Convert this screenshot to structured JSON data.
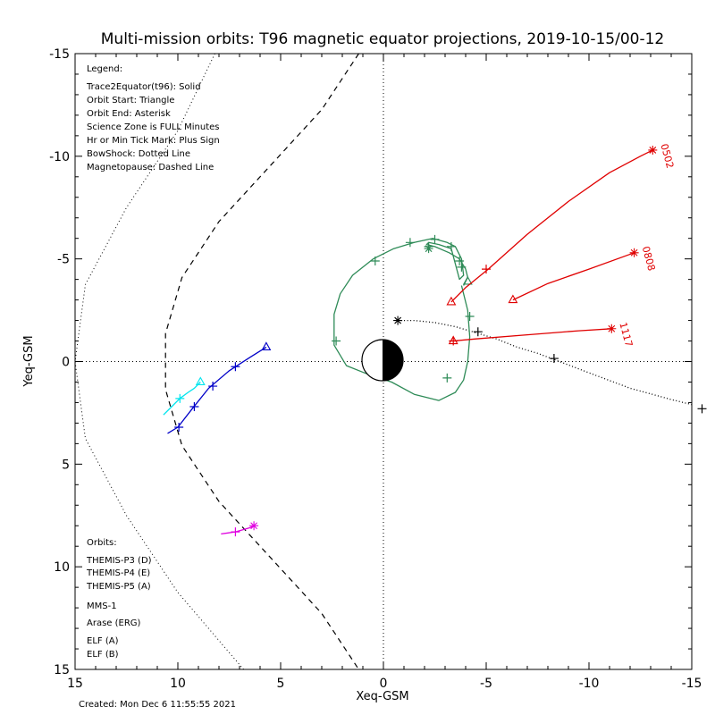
{
  "chart_data": {
    "type": "line",
    "title": "Multi-mission orbits: T96 magnetic equator projections, 2019-10-15/00-12",
    "xlabel": "Xeq-GSM",
    "ylabel": "Yeq-GSM",
    "xlim": [
      15,
      -15
    ],
    "ylim": [
      15,
      -15
    ],
    "x_ticks": [
      "15",
      "10",
      "5",
      "0",
      "-5",
      "-10",
      "-15"
    ],
    "y_ticks": [
      "-15",
      "-10",
      "-5",
      "0",
      "5",
      "10",
      "15"
    ],
    "created": "Created: Mon Dec  6 11:55:55 2021",
    "legend_lines": [
      "Legend:",
      "Trace2Equator(t96): Solid",
      "Orbit Start: Triangle",
      "Orbit End: Asterisk",
      "Science Zone is FULL Minutes",
      "Hr or Min Tick Mark: Plus Sign",
      "BowShock: Dotted Line",
      "Magnetopause: Dashed Line"
    ],
    "orbits_header": "Orbits:",
    "orbits": [
      {
        "name": "THEMIS-P3 (D)",
        "color": "#00e5ee"
      },
      {
        "name": "THEMIS-P4 (E)",
        "color": "#0000c8"
      },
      {
        "name": "THEMIS-P5 (A)",
        "color": "#e000e0"
      },
      {
        "name": "MMS-1",
        "color": "#000000"
      },
      {
        "name": "Arase (ERG)",
        "color": "#2e8b57"
      },
      {
        "name": "ELF (A)",
        "color": "#1e90ff"
      },
      {
        "name": "ELF (B)",
        "color": "#e00000"
      }
    ],
    "bow_shock": {
      "style": "dotted",
      "x": [
        8.2,
        10,
        12.5,
        14.5,
        15,
        14.5,
        12.5,
        10,
        6.8
      ]
    },
    "magnetopause": {
      "style": "dashed",
      "x": [
        1.2,
        3,
        5.5,
        8,
        9.8,
        10.6,
        10.6,
        9.8,
        8,
        5.5,
        3,
        1.2
      ]
    },
    "series": [
      {
        "name": "THEMIS-P3 (D)",
        "color": "#00e5ee",
        "x": [
          10.7,
          10.3,
          9.9,
          9.5,
          9.2,
          8.9
        ],
        "y": [
          2.6,
          2.2,
          1.8,
          1.5,
          1.3,
          1.0
        ],
        "ticks": [
          [
            9.9,
            1.8
          ]
        ],
        "start": [
          8.9,
          1.0
        ],
        "end": null
      },
      {
        "name": "THEMIS-P4 (E)",
        "color": "#0000c8",
        "x": [
          10.5,
          10.0,
          9.3,
          8.5,
          7.5,
          6.5,
          5.7
        ],
        "y": [
          3.5,
          3.2,
          2.3,
          1.3,
          0.45,
          -0.2,
          -0.7
        ],
        "ticks": [
          [
            9.95,
            3.2
          ],
          [
            9.2,
            2.2
          ],
          [
            8.3,
            1.2
          ],
          [
            7.2,
            0.25
          ]
        ],
        "start": [
          5.7,
          -0.7
        ],
        "end": null
      },
      {
        "name": "THEMIS-P5 (A)",
        "color": "#e000e0",
        "x": [
          7.9,
          7.2,
          6.5,
          6.3
        ],
        "y": [
          8.4,
          8.3,
          8.1,
          8.0
        ],
        "ticks": [
          [
            7.2,
            8.3
          ]
        ],
        "start": null,
        "end": [
          6.3,
          8.0
        ]
      },
      {
        "name": "MMS-1",
        "color": "#000000",
        "x": [
          -0.7,
          -1.5,
          -2.5,
          -3.5,
          -4.5,
          -5.5,
          -6.5,
          -7.5,
          -8.3,
          -10,
          -12,
          -14,
          -15
        ],
        "y": [
          -2.0,
          -2.0,
          -1.9,
          -1.7,
          -1.4,
          -1.1,
          -0.7,
          -0.4,
          -0.1,
          0.55,
          1.3,
          1.85,
          2.1
        ],
        "ticks": [
          [
            -4.6,
            -1.45
          ],
          [
            -8.3,
            -0.15
          ],
          [
            -15.5,
            2.3
          ]
        ],
        "start": null,
        "end": [
          -0.7,
          -2.0
        ]
      },
      {
        "name": "Arase (ERG)",
        "color": "#2e8b57",
        "x": [
          -3.8,
          -4.1,
          -4.2,
          -4.1,
          -3.9,
          -3.5,
          -2.7,
          -1.5,
          -0.4,
          0.8,
          1.8,
          2.4,
          2.4,
          2.1,
          1.5,
          0.5,
          -0.5,
          -1.5,
          -2.4,
          -3.1,
          -3.5,
          -3.8,
          -3.9,
          -3.7,
          -3.3,
          -2.7,
          -2.2,
          -2.1,
          -2.5,
          -3.2,
          -3.7,
          -4.0,
          -4.1,
          -3.9
        ],
        "y": [
          -3.7,
          -2.5,
          -1.2,
          0.0,
          0.9,
          1.5,
          1.9,
          1.6,
          1.0,
          0.6,
          0.2,
          -0.8,
          -2.3,
          -3.3,
          -4.2,
          -5.0,
          -5.5,
          -5.8,
          -6.0,
          -5.8,
          -5.6,
          -5.0,
          -4.2,
          -4.0,
          -5.5,
          -5.7,
          -5.8,
          -5.7,
          -5.6,
          -5.3,
          -5.0,
          -4.5,
          -4.1,
          -3.7
        ],
        "ticks": [
          [
            -3.1,
            0.8
          ],
          [
            2.3,
            -1.0
          ],
          [
            0.4,
            -4.9
          ],
          [
            -1.3,
            -5.8
          ],
          [
            -2.5,
            -5.95
          ],
          [
            -3.3,
            -5.6
          ],
          [
            -3.7,
            -4.9
          ],
          [
            -3.8,
            -4.6
          ],
          [
            -4.2,
            -2.2
          ],
          [
            -2.2,
            -5.6
          ]
        ],
        "start": [
          -4.1,
          -3.9
        ],
        "end": [
          -2.2,
          -5.5
        ]
      },
      {
        "name": "ELF (B)",
        "color": "#e00000",
        "label": "0502",
        "x": [
          -3.3,
          -4.0,
          -5.1,
          -7,
          -9,
          -11,
          -12.5,
          -13.1
        ],
        "y": [
          -2.9,
          -3.6,
          -4.5,
          -6.2,
          -7.8,
          -9.2,
          -10.0,
          -10.3
        ],
        "ticks": [
          [
            -5.0,
            -4.5
          ]
        ],
        "start": [
          -3.3,
          -2.9
        ],
        "end": [
          -13.1,
          -10.3
        ]
      },
      {
        "name": "ELF (B)",
        "color": "#e00000",
        "label": "0808",
        "x": [
          -6.3,
          -8,
          -10,
          -12.2
        ],
        "y": [
          -3.0,
          -3.8,
          -4.5,
          -5.3
        ],
        "ticks": [],
        "start": [
          -6.3,
          -3.0
        ],
        "end": [
          -12.2,
          -5.3
        ]
      },
      {
        "name": "ELF (B)",
        "color": "#e00000",
        "label": "1117",
        "x": [
          -3.4,
          -4.5,
          -7,
          -9.5,
          -11.1
        ],
        "y": [
          -1.0,
          -1.1,
          -1.3,
          -1.5,
          -1.6
        ],
        "ticks": [
          [
            -3.4,
            -1.0
          ]
        ],
        "start": [
          -3.4,
          -1.0
        ],
        "end": [
          -11.1,
          -1.6
        ]
      }
    ]
  }
}
